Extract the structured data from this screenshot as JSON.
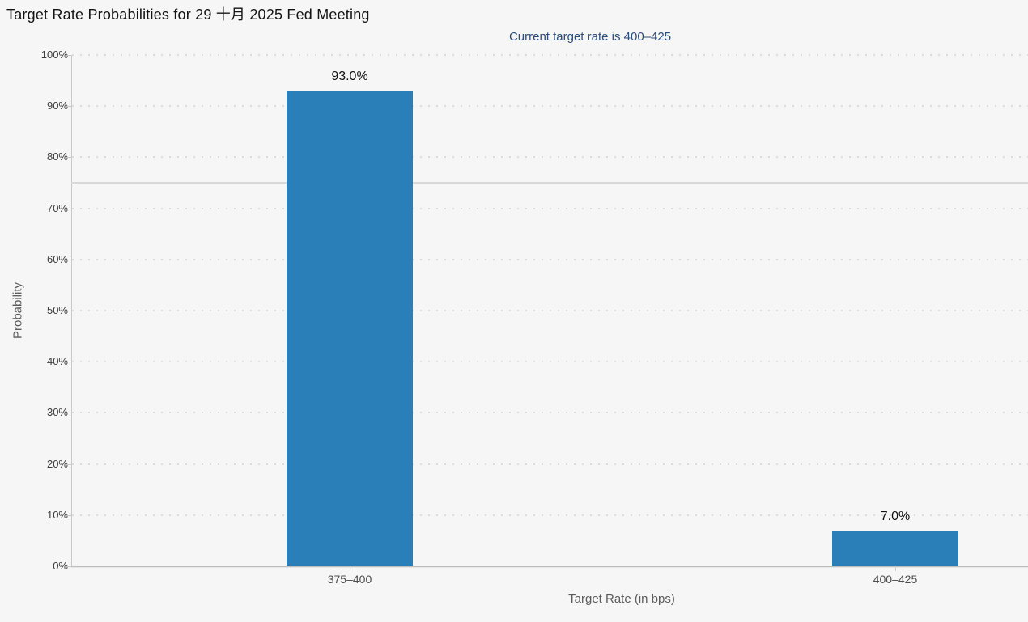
{
  "page": {
    "title": "Target Rate Probabilities for 29 十月 2025 Fed Meeting",
    "subtitle": "Current target rate is 400–425"
  },
  "chart_data": {
    "type": "bar",
    "title": "Target Rate Probabilities for 29 十月 2025 Fed Meeting",
    "subtitle": "Current target rate is 400–425",
    "categories": [
      "375–400",
      "400–425"
    ],
    "values": [
      93.0,
      7.0
    ],
    "value_labels": [
      "93.0%",
      "7.0%"
    ],
    "xlabel": "Target Rate (in bps)",
    "ylabel": "Probability",
    "ylim": [
      0,
      100
    ],
    "ytick_step": 10,
    "ytick_suffix": "%",
    "grid": "dotted-horizontal",
    "reference_line_y": 75,
    "legend": "none",
    "colors": {
      "bar": "#2b7fb9",
      "background": "#f6f6f6",
      "subtitle_text": "#2c4c7c",
      "axis_line": "#c9c9c9",
      "grid_dot": "#dcdcdc"
    }
  }
}
